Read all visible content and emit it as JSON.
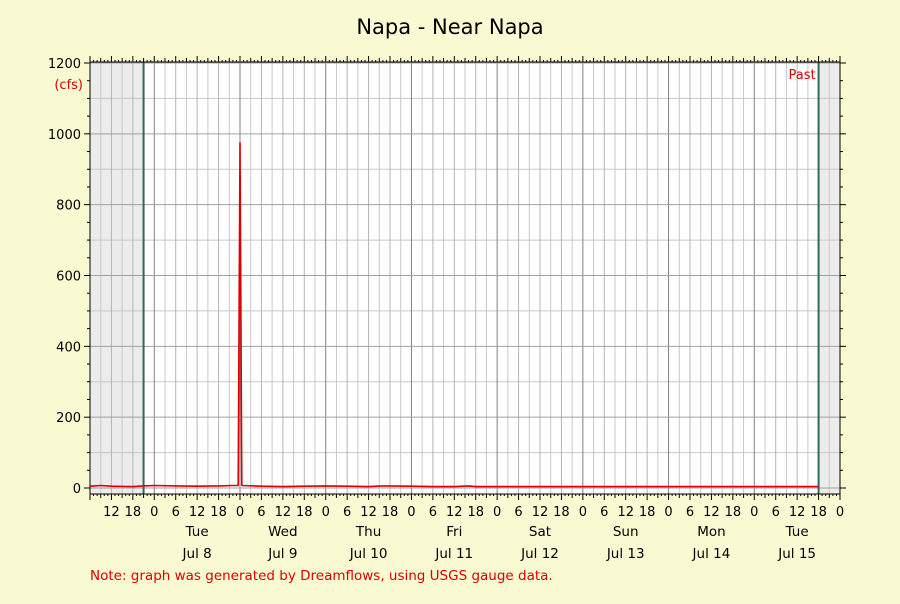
{
  "chart_data": {
    "type": "line",
    "title": "Napa - Near Napa",
    "ylabel": "(cfs)",
    "xlabel": "",
    "ylim": [
      0,
      1200
    ],
    "yticks": [
      0,
      200,
      400,
      600,
      800,
      1000,
      1200
    ],
    "xlim_hours": "Jul 7 06:00 to Jul 15 23:59",
    "hour_tick_labels": [
      "12",
      "18",
      "0",
      "6",
      "12",
      "18",
      "0",
      "6",
      "12",
      "18",
      "0",
      "6",
      "12",
      "18",
      "0",
      "6",
      "12",
      "18",
      "0",
      "6",
      "12",
      "18",
      "0",
      "6",
      "12",
      "18",
      "0",
      "6",
      "12",
      "18",
      "0",
      "6",
      "12",
      "18",
      "0"
    ],
    "days": [
      {
        "weekday": "Tue",
        "date": "Jul 8"
      },
      {
        "weekday": "Wed",
        "date": "Jul 9"
      },
      {
        "weekday": "Thu",
        "date": "Jul 10"
      },
      {
        "weekday": "Fri",
        "date": "Jul 11"
      },
      {
        "weekday": "Sat",
        "date": "Jul 12"
      },
      {
        "weekday": "Sun",
        "date": "Jul 13"
      },
      {
        "weekday": "Mon",
        "date": "Jul 14"
      },
      {
        "weekday": "Tue",
        "date": "Jul 15"
      }
    ],
    "past_label": "Past",
    "grid": true,
    "series": [
      {
        "color": "#dd0000",
        "points": [
          [
            "Jul 7 06:00",
            5
          ],
          [
            "Jul 7 09:00",
            7
          ],
          [
            "Jul 7 12:00",
            5
          ],
          [
            "Jul 7 18:00",
            4
          ],
          [
            "Jul 7 21:00",
            6
          ],
          [
            "Jul 8 00:00",
            7
          ],
          [
            "Jul 8 06:00",
            6
          ],
          [
            "Jul 8 12:00",
            5
          ],
          [
            "Jul 8 18:00",
            6
          ],
          [
            "Jul 8 22:00",
            7
          ],
          [
            "Jul 8 23:30",
            7
          ],
          [
            "Jul 9 00:00",
            975
          ],
          [
            "Jul 9 00:30",
            7
          ],
          [
            "Jul 9 06:00",
            5
          ],
          [
            "Jul 9 12:00",
            4
          ],
          [
            "Jul 9 18:00",
            5
          ],
          [
            "Jul 10 00:00",
            6
          ],
          [
            "Jul 10 06:00",
            5
          ],
          [
            "Jul 10 12:00",
            4
          ],
          [
            "Jul 10 16:00",
            6
          ],
          [
            "Jul 11 00:00",
            5
          ],
          [
            "Jul 11 06:00",
            4
          ],
          [
            "Jul 11 12:00",
            4
          ],
          [
            "Jul 11 16:00",
            6
          ],
          [
            "Jul 11 18:00",
            4
          ],
          [
            "Jul 12 00:00",
            4
          ],
          [
            "Jul 13 00:00",
            4
          ],
          [
            "Jul 14 00:00",
            4
          ],
          [
            "Jul 15 00:00",
            4
          ],
          [
            "Jul 15 18:00",
            4
          ]
        ]
      }
    ],
    "footnote": "Note: graph was generated by Dreamflows, using USGS gauge data."
  },
  "colors": {
    "background": "#fafad2",
    "plot": "#ffffff",
    "shade": "#ececec",
    "grid_major": "#808080",
    "grid_minor": "#c8c8c8",
    "boundary": "#2e6b55",
    "series": "#dd0000",
    "accent_text": "#dd0000"
  }
}
